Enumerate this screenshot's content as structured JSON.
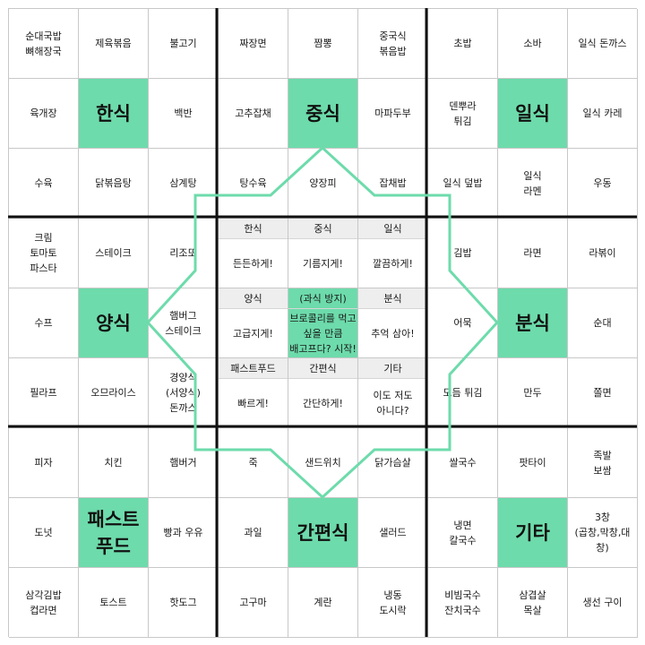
{
  "grid": [
    [
      "순대국밥\n뼈해장국",
      "제육볶음",
      "불고기",
      "짜장면",
      "짬뽕",
      "중국식\n볶음밥",
      "초밥",
      "소바",
      "일식 돈까스"
    ],
    [
      "육개장",
      "한식",
      "백반",
      "고추잡채",
      "중식",
      "마파두부",
      "덴뿌라\n튀김",
      "일식",
      "일식 카레"
    ],
    [
      "수육",
      "닭볶음탕",
      "삼계탕",
      "탕수육",
      "양장피",
      "잡채밥",
      "일식 덮밥",
      "일식\n라멘",
      "우동"
    ],
    [
      "크림\n토마토\n파스타",
      "스테이크",
      "리조또",
      "",
      "",
      "",
      "김밥",
      "라면",
      "라볶이"
    ],
    [
      "수프",
      "양식",
      "햄버그\n스테이크",
      "",
      "",
      "",
      "어묵",
      "분식",
      "순대"
    ],
    [
      "필라프",
      "오므라이스",
      "경양식\n(서양식)\n돈까스",
      "",
      "",
      "",
      "모듬 튀김",
      "만두",
      "쫄면"
    ],
    [
      "피자",
      "치킨",
      "햄버거",
      "죽",
      "샌드위치",
      "닭가슴살",
      "쌀국수",
      "팟타이",
      "족발\n보쌈"
    ],
    [
      "도넛",
      "패스트\n푸드",
      "빵과 우유",
      "과일",
      "간편식",
      "샐러드",
      "냉면\n칼국수",
      "기타",
      "3창\n(곱창,막창,대창)"
    ],
    [
      "삼각김밥\n컵라면",
      "토스트",
      "핫도그",
      "고구마",
      "계란",
      "냉동\n도시락",
      "비빔국수\n잔치국수",
      "삼겹살\n목살",
      "생선 구이"
    ]
  ],
  "center": [
    {
      "header": "한식",
      "body": "든든하게!"
    },
    {
      "header": "중식",
      "body": "기름지게!"
    },
    {
      "header": "일식",
      "body": "깔끔하게!"
    },
    {
      "header": "양식",
      "body": "고급지게!"
    },
    {
      "header": "(과식 방지)",
      "body": "브로콜리를 먹고\n싶을 만큼\n배고프다? 시작!"
    },
    {
      "header": "분식",
      "body": "추억 삼아!"
    },
    {
      "header": "패스트푸드",
      "body": "빠르게!"
    },
    {
      "header": "간편식",
      "body": "간단하게!"
    },
    {
      "header": "기타",
      "body": "이도 저도\n아니다?"
    }
  ],
  "colors": {
    "accent": "#6ddbab",
    "star_line": "#6ddbab",
    "header_bg": "#eeeeee",
    "grid_line": "#c8c8c8",
    "block_line": "#111111"
  }
}
